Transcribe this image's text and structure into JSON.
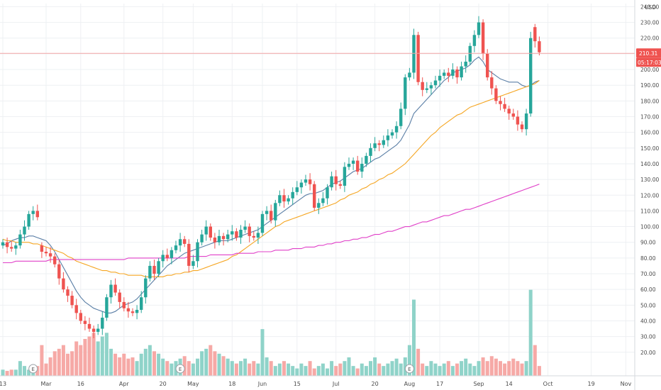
{
  "chart_data": {
    "type": "candlestick",
    "currency": "USD",
    "y_range": [
      5,
      242
    ],
    "y_ticks": [
      20,
      30,
      40,
      50,
      60,
      70,
      80,
      90,
      100,
      110,
      120,
      130,
      140,
      150,
      160,
      170,
      180,
      190,
      200,
      210,
      220,
      230,
      240
    ],
    "y_tick_labels": [
      "20.00",
      "30.00",
      "40.00",
      "50.00",
      "60.00",
      "70.00",
      "80.00",
      "90.00",
      "100.00",
      "110.00",
      "120.00",
      "130.00",
      "140.00",
      "150.00",
      "160.00",
      "170.00",
      "180.00",
      "190.00",
      "200.00",
      "210.00",
      "220.00",
      "230.00",
      "240.00"
    ],
    "x_labels": [
      {
        "bar": 0,
        "text": "13"
      },
      {
        "bar": 10,
        "text": "Mar"
      },
      {
        "bar": 18,
        "text": "16"
      },
      {
        "bar": 28,
        "text": "Apr"
      },
      {
        "bar": 37,
        "text": "20"
      },
      {
        "bar": 44,
        "text": "May"
      },
      {
        "bar": 53,
        "text": "18"
      },
      {
        "bar": 60,
        "text": "Jun"
      },
      {
        "bar": 68,
        "text": "15"
      },
      {
        "bar": 77,
        "text": "Jul"
      },
      {
        "bar": 86,
        "text": "20"
      },
      {
        "bar": 94,
        "text": "Aug"
      },
      {
        "bar": 101,
        "text": "17"
      },
      {
        "bar": 110,
        "text": "Sep"
      },
      {
        "bar": 117,
        "text": "14"
      },
      {
        "bar": 126,
        "text": "Oct"
      },
      {
        "bar": 136,
        "text": "19"
      },
      {
        "bar": 144,
        "text": "Nov"
      }
    ],
    "last_price": 210.31,
    "last_price_label": "210.31",
    "countdown_label": "05:17:03",
    "closes": [
      90,
      87,
      86,
      88,
      95,
      100,
      108,
      110,
      106,
      84,
      83,
      81,
      76,
      67,
      60,
      56,
      50,
      45,
      40,
      38,
      35,
      33,
      35,
      42,
      55,
      63,
      58,
      52,
      48,
      46,
      45,
      47,
      55,
      67,
      75,
      70,
      78,
      82,
      80,
      85,
      88,
      92,
      89,
      75,
      78,
      90,
      95,
      100,
      93,
      90,
      94,
      92,
      95,
      97,
      93,
      98,
      100,
      94,
      93,
      96,
      108,
      110,
      104,
      115,
      120,
      116,
      118,
      122,
      125,
      128,
      130,
      127,
      112,
      115,
      118,
      125,
      132,
      127,
      126,
      138,
      140,
      142,
      135,
      140,
      145,
      150,
      153,
      152,
      155,
      158,
      160,
      164,
      175,
      195,
      198,
      222,
      192,
      187,
      188,
      190,
      193,
      196,
      198,
      196,
      200,
      195,
      202,
      205,
      215,
      222,
      230,
      210,
      195,
      188,
      180,
      178,
      175,
      172,
      170,
      165,
      162,
      172,
      220,
      218,
      211
    ],
    "opens": [
      88,
      90,
      87,
      86,
      88,
      95,
      100,
      108,
      110,
      88,
      84,
      83,
      81,
      76,
      67,
      60,
      56,
      50,
      45,
      40,
      38,
      35,
      33,
      35,
      42,
      55,
      63,
      58,
      52,
      48,
      46,
      45,
      47,
      55,
      67,
      75,
      70,
      78,
      82,
      80,
      85,
      88,
      92,
      89,
      75,
      78,
      90,
      95,
      100,
      93,
      90,
      94,
      92,
      95,
      97,
      93,
      98,
      100,
      94,
      93,
      96,
      108,
      110,
      104,
      115,
      120,
      116,
      118,
      122,
      125,
      128,
      130,
      127,
      112,
      115,
      118,
      125,
      132,
      127,
      126,
      138,
      140,
      142,
      135,
      140,
      145,
      150,
      153,
      152,
      155,
      158,
      160,
      164,
      175,
      195,
      198,
      222,
      192,
      187,
      188,
      190,
      193,
      196,
      198,
      196,
      200,
      195,
      202,
      205,
      215,
      222,
      230,
      210,
      195,
      188,
      180,
      178,
      175,
      172,
      170,
      165,
      162,
      172,
      227,
      218
    ],
    "volumes": [
      5,
      4,
      5,
      5,
      12,
      8,
      5,
      6,
      8,
      25,
      10,
      15,
      20,
      22,
      25,
      18,
      20,
      28,
      25,
      30,
      32,
      35,
      28,
      32,
      35,
      22,
      18,
      15,
      18,
      14,
      15,
      12,
      18,
      22,
      25,
      20,
      18,
      14,
      12,
      10,
      12,
      14,
      16,
      12,
      10,
      14,
      20,
      22,
      25,
      20,
      18,
      16,
      14,
      12,
      10,
      12,
      14,
      10,
      12,
      10,
      38,
      15,
      12,
      8,
      10,
      12,
      10,
      8,
      6,
      10,
      8,
      12,
      6,
      8,
      10,
      6,
      12,
      8,
      10,
      12,
      15,
      8,
      6,
      10,
      8,
      12,
      15,
      10,
      8,
      10,
      12,
      14,
      10,
      15,
      25,
      62,
      22,
      10,
      8,
      12,
      10,
      8,
      10,
      12,
      8,
      10,
      12,
      14,
      10,
      8,
      12,
      15,
      12,
      16,
      14,
      12,
      10,
      12,
      14,
      12,
      10,
      12,
      70,
      25,
      8
    ],
    "volume_markers": [
      {
        "bar": 7,
        "text": "E"
      },
      {
        "bar": 41,
        "text": "E"
      },
      {
        "bar": 94,
        "text": "E"
      }
    ],
    "series": [
      {
        "name": "",
        "color": "#5b7fa6",
        "values": [
          88,
          89,
          91,
          92,
          93,
          93,
          94,
          94,
          93,
          92,
          91,
          88,
          84,
          79,
          74,
          69,
          64,
          59,
          55,
          52,
          50,
          48,
          47,
          46,
          45,
          45,
          46,
          48,
          50,
          51,
          52,
          54,
          57,
          60,
          63,
          66,
          69,
          72,
          75,
          77,
          79,
          81,
          83,
          84,
          85,
          86,
          87,
          88,
          89,
          90,
          91,
          91,
          91,
          92,
          93,
          94,
          95,
          96,
          97,
          98,
          100,
          102,
          104,
          106,
          108,
          110,
          112,
          114,
          116,
          118,
          120,
          121,
          121,
          122,
          123,
          125,
          127,
          128,
          129,
          131,
          133,
          135,
          136,
          137,
          139,
          141,
          143,
          144,
          146,
          148,
          150,
          152,
          155,
          160,
          165,
          172,
          175,
          178,
          181,
          184,
          187,
          190,
          193,
          195,
          198,
          199,
          200,
          201,
          203,
          206,
          208,
          205,
          200,
          198,
          196,
          194,
          193,
          192,
          192,
          192,
          190,
          189,
          190,
          192,
          193
        ]
      },
      {
        "name": "",
        "color": "#f5a623",
        "values": [
          92,
          91,
          91,
          90,
          90,
          90,
          90,
          89,
          89,
          88,
          87,
          86,
          85,
          84,
          83,
          81,
          80,
          78,
          77,
          76,
          75,
          74,
          73,
          72,
          72,
          71,
          71,
          70,
          70,
          69,
          69,
          69,
          69,
          68,
          68,
          68,
          68,
          68,
          69,
          69,
          70,
          70,
          71,
          71,
          72,
          72,
          73,
          74,
          75,
          76,
          77,
          78,
          79,
          81,
          82,
          84,
          86,
          88,
          90,
          92,
          94,
          96,
          98,
          100,
          101,
          103,
          104,
          105,
          106,
          107,
          108,
          109,
          110,
          111,
          112,
          113,
          114,
          115,
          117,
          118,
          120,
          121,
          122,
          124,
          125,
          127,
          128,
          130,
          131,
          133,
          134,
          136,
          138,
          140,
          143,
          146,
          149,
          152,
          155,
          158,
          160,
          163,
          165,
          167,
          169,
          171,
          172,
          174,
          176,
          177,
          178,
          179,
          180,
          181,
          182,
          183,
          184,
          185,
          186,
          187,
          188,
          189,
          190,
          191,
          193
        ]
      },
      {
        "name": "",
        "color": "#e040c8",
        "values": [
          77,
          77,
          77,
          78,
          78,
          78,
          78,
          78,
          78,
          78,
          78,
          79,
          79,
          79,
          79,
          79,
          79,
          79,
          79,
          79,
          79,
          79,
          79,
          79,
          79,
          79,
          79,
          79,
          79,
          80,
          80,
          80,
          80,
          80,
          80,
          80,
          80,
          80,
          80,
          80,
          80,
          80,
          80,
          81,
          81,
          81,
          81,
          81,
          82,
          82,
          82,
          82,
          82,
          82,
          83,
          83,
          83,
          83,
          83,
          84,
          84,
          84,
          84,
          85,
          85,
          85,
          85,
          86,
          86,
          86,
          87,
          87,
          87,
          88,
          88,
          89,
          89,
          90,
          90,
          91,
          91,
          92,
          92,
          93,
          93,
          94,
          95,
          95,
          96,
          97,
          97,
          98,
          99,
          100,
          100,
          101,
          102,
          103,
          103,
          104,
          105,
          106,
          107,
          107,
          108,
          109,
          110,
          111,
          111,
          112,
          113,
          114,
          115,
          116,
          117,
          118,
          119,
          120,
          121,
          122,
          123,
          124,
          125,
          126,
          127
        ]
      }
    ],
    "grid": true,
    "y_axis_position": "right"
  }
}
